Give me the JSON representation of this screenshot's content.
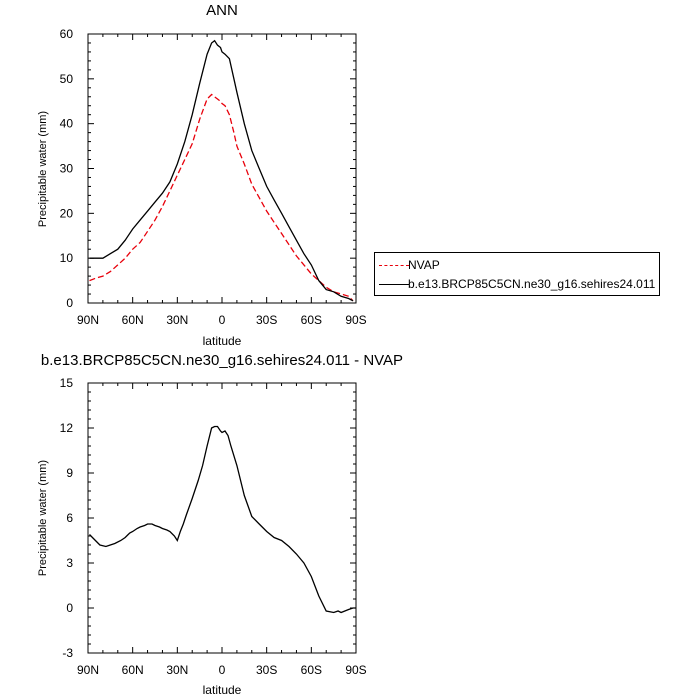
{
  "chart_data": [
    {
      "type": "line",
      "title": "ANN",
      "xlabel": "latitude",
      "ylabel": "Precipitable water (mm)",
      "xlim": [
        90,
        -90
      ],
      "ylim": [
        0,
        60
      ],
      "x_ticks": [
        90,
        60,
        30,
        0,
        -30,
        -60,
        -90
      ],
      "x_tick_labels": [
        "90N",
        "60N",
        "30N",
        "0",
        "30S",
        "60S",
        "90S"
      ],
      "y_ticks": [
        0,
        10,
        20,
        30,
        40,
        50,
        60
      ],
      "y_tick_labels": [
        "0",
        "10",
        "20",
        "30",
        "40",
        "50",
        "60"
      ],
      "legend_position": "right",
      "series": [
        {
          "name": "NVAP",
          "color": "#e8000b",
          "style": "dashed",
          "x": [
            89,
            85,
            80,
            75,
            70,
            65,
            60,
            55,
            50,
            45,
            40,
            35,
            30,
            25,
            20,
            15,
            10,
            7,
            5,
            3,
            1,
            0,
            -2,
            -5,
            -8,
            -10,
            -15,
            -20,
            -25,
            -30,
            -35,
            -40,
            -45,
            -50,
            -55,
            -60,
            -65,
            -70,
            -75,
            -80,
            -85,
            -88
          ],
          "y": [
            5,
            5.5,
            6,
            7,
            8.5,
            10,
            12,
            13.5,
            16,
            18.5,
            21.5,
            25,
            28.5,
            32,
            35.5,
            41,
            45.5,
            46.5,
            46,
            45.5,
            45,
            44.5,
            44,
            42,
            38,
            35,
            31,
            26.5,
            23.5,
            20.5,
            18,
            15.5,
            13,
            10.5,
            8.5,
            6.5,
            5,
            3.5,
            2.5,
            2,
            1.5,
            0.5
          ]
        },
        {
          "name": "b.e13.BRCP85C5CN.ne30_g16.sehires24.011",
          "color": "#000000",
          "style": "solid",
          "x": [
            89,
            85,
            80,
            75,
            70,
            65,
            60,
            55,
            50,
            45,
            40,
            35,
            30,
            25,
            20,
            15,
            10,
            7,
            5,
            3,
            1,
            0,
            -2,
            -5,
            -8,
            -10,
            -15,
            -20,
            -25,
            -30,
            -35,
            -40,
            -45,
            -50,
            -55,
            -60,
            -65,
            -70,
            -75,
            -80,
            -85,
            -88
          ],
          "y": [
            10,
            10,
            10,
            11,
            12,
            14,
            16.5,
            18.5,
            20.5,
            22.5,
            24.5,
            27,
            31,
            36,
            42,
            49,
            55.5,
            58,
            58.5,
            57.5,
            57,
            56,
            55.5,
            54.5,
            50,
            47,
            40,
            34,
            30,
            26,
            23,
            20,
            17,
            14,
            11,
            8.5,
            5,
            3,
            2.5,
            1.5,
            1,
            0.5
          ]
        }
      ]
    },
    {
      "type": "line",
      "title": "b.e13.BRCP85C5CN.ne30_g16.sehires24.011 - NVAP",
      "xlabel": "latitude",
      "ylabel": "Precipitable water (mm)",
      "xlim": [
        90,
        -90
      ],
      "ylim": [
        -3,
        15
      ],
      "x_ticks": [
        90,
        60,
        30,
        0,
        -30,
        -60,
        -90
      ],
      "x_tick_labels": [
        "90N",
        "60N",
        "30N",
        "0",
        "30S",
        "60S",
        "90S"
      ],
      "y_ticks": [
        -3,
        0,
        3,
        6,
        9,
        12,
        15
      ],
      "y_tick_labels": [
        "-3",
        "0",
        "3",
        "6",
        "9",
        "12",
        "15"
      ],
      "series": [
        {
          "color": "#000000",
          "style": "solid",
          "x": [
            89,
            85,
            82,
            78,
            75,
            72,
            68,
            65,
            62,
            60,
            57,
            55,
            52,
            50,
            47,
            45,
            42,
            40,
            37,
            35,
            32,
            30,
            28,
            26,
            24,
            20,
            16,
            13,
            10,
            7,
            5,
            3,
            1,
            0,
            -2,
            -4,
            -6,
            -10,
            -15,
            -20,
            -25,
            -30,
            -35,
            -40,
            -45,
            -50,
            -55,
            -60,
            -65,
            -70,
            -75,
            -78,
            -80,
            -85,
            -88,
            -90
          ],
          "y": [
            4.9,
            4.5,
            4.2,
            4.1,
            4.2,
            4.3,
            4.5,
            4.7,
            5,
            5.1,
            5.3,
            5.4,
            5.5,
            5.6,
            5.6,
            5.5,
            5.4,
            5.3,
            5.2,
            5.1,
            4.8,
            4.5,
            5.1,
            5.6,
            6.2,
            7.3,
            8.5,
            9.5,
            10.8,
            12,
            12.1,
            12.1,
            11.8,
            11.7,
            11.8,
            11.5,
            10.8,
            9.5,
            7.5,
            6.1,
            5.6,
            5.1,
            4.7,
            4.5,
            4.1,
            3.6,
            3,
            2.1,
            0.8,
            -0.2,
            -0.3,
            -0.2,
            -0.3,
            -0.1,
            0,
            0
          ]
        }
      ]
    }
  ]
}
